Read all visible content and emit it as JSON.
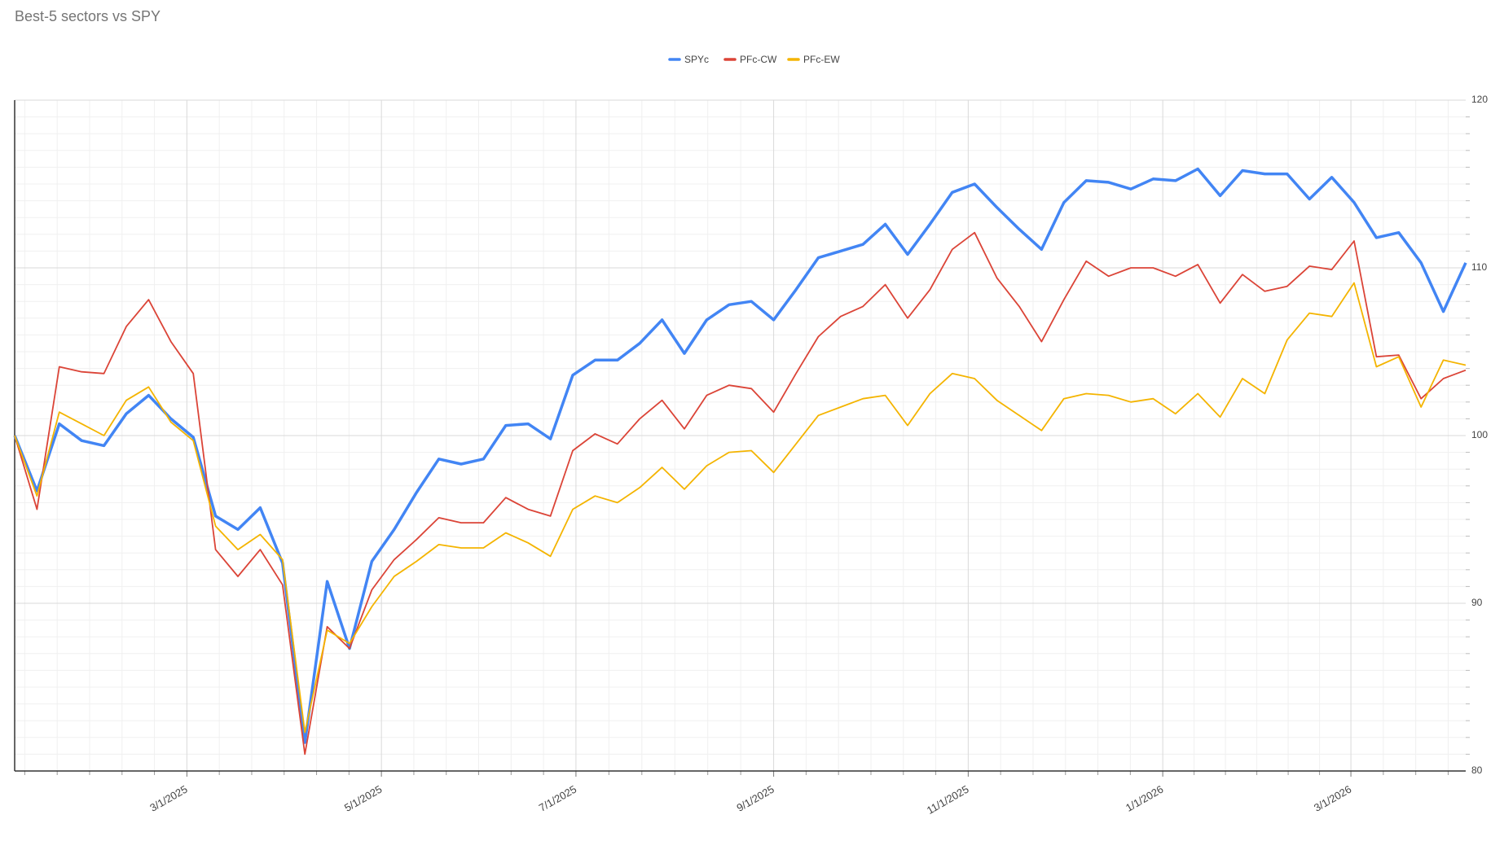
{
  "chart_data": {
    "type": "line",
    "title": "Best-5 sectors vs SPY",
    "x": [
      "2025-01-06",
      "2025-01-13",
      "2025-01-20",
      "2025-01-27",
      "2025-02-03",
      "2025-02-10",
      "2025-02-17",
      "2025-02-24",
      "2025-03-03",
      "2025-03-10",
      "2025-03-17",
      "2025-03-24",
      "2025-03-31",
      "2025-04-07",
      "2025-04-14",
      "2025-04-21",
      "2025-04-28",
      "2025-05-05",
      "2025-05-12",
      "2025-05-19",
      "2025-05-26",
      "2025-06-02",
      "2025-06-09",
      "2025-06-16",
      "2025-06-23",
      "2025-06-30",
      "2025-07-07",
      "2025-07-14",
      "2025-07-21",
      "2025-07-28",
      "2025-08-04",
      "2025-08-11",
      "2025-08-18",
      "2025-08-25",
      "2025-09-01",
      "2025-09-08",
      "2025-09-15",
      "2025-09-22",
      "2025-09-29",
      "2025-10-06",
      "2025-10-13",
      "2025-10-20",
      "2025-10-27",
      "2025-11-03",
      "2025-11-10",
      "2025-11-17",
      "2025-11-24",
      "2025-12-01",
      "2025-12-08",
      "2025-12-15",
      "2025-12-22",
      "2025-12-29",
      "2026-01-05",
      "2026-01-12",
      "2026-01-19",
      "2026-01-26",
      "2026-02-02",
      "2026-02-09",
      "2026-02-16",
      "2026-02-23",
      "2026-03-02",
      "2026-03-09",
      "2026-03-16",
      "2026-03-23",
      "2026-03-30",
      "2026-04-06"
    ],
    "series": [
      {
        "name": "SPYc",
        "color": "#4285f4",
        "values": [
          100,
          96.7,
          100.7,
          99.7,
          99.4,
          101.3,
          102.4,
          101.0,
          99.9,
          95.2,
          94.4,
          95.7,
          92.4,
          81.7,
          91.3,
          87.3,
          92.5,
          94.4,
          96.6,
          98.6,
          98.3,
          98.6,
          100.6,
          100.7,
          99.8,
          103.6,
          104.5,
          104.5,
          105.5,
          106.9,
          104.9,
          106.9,
          107.8,
          108.0,
          106.9,
          108.7,
          110.6,
          111.0,
          111.4,
          112.6,
          110.8,
          112.6,
          114.5,
          115.0,
          113.6,
          112.3,
          111.1,
          113.9,
          115.2,
          115.1,
          114.7,
          115.3,
          115.2,
          115.9,
          114.3,
          115.8,
          115.6,
          115.6,
          114.1,
          115.4,
          113.9,
          111.8,
          112.1,
          110.3,
          107.4,
          110.3
        ]
      },
      {
        "name": "PFc-CW",
        "color": "#db4437",
        "values": [
          100,
          95.6,
          104.1,
          103.8,
          103.7,
          106.5,
          108.1,
          105.6,
          103.7,
          93.2,
          91.6,
          93.2,
          91.1,
          81.0,
          88.6,
          87.3,
          90.8,
          92.6,
          93.8,
          95.1,
          94.8,
          94.8,
          96.3,
          95.6,
          95.2,
          99.1,
          100.1,
          99.5,
          101.0,
          102.1,
          100.4,
          102.4,
          103.0,
          102.8,
          101.4,
          103.7,
          105.9,
          107.1,
          107.7,
          109.0,
          107.0,
          108.7,
          111.1,
          112.1,
          109.4,
          107.7,
          105.6,
          108.1,
          110.4,
          109.5,
          110.0,
          110.0,
          109.5,
          110.2,
          107.9,
          109.6,
          108.6,
          108.9,
          110.1,
          109.9,
          111.6,
          104.7,
          104.8,
          102.2,
          103.4,
          103.9
        ]
      },
      {
        "name": "PFc-EW",
        "color": "#f4b400",
        "values": [
          100,
          96.4,
          101.4,
          100.7,
          100.0,
          102.1,
          102.9,
          100.8,
          99.7,
          94.6,
          93.2,
          94.1,
          92.6,
          82.3,
          88.4,
          87.6,
          89.8,
          91.6,
          92.5,
          93.5,
          93.3,
          93.3,
          94.2,
          93.6,
          92.8,
          95.6,
          96.4,
          96.0,
          96.9,
          98.1,
          96.8,
          98.2,
          99.0,
          99.1,
          97.8,
          99.5,
          101.2,
          101.7,
          102.2,
          102.4,
          100.6,
          102.5,
          103.7,
          103.4,
          102.1,
          101.2,
          100.3,
          102.2,
          102.5,
          102.4,
          102.0,
          102.2,
          101.3,
          102.5,
          101.1,
          103.4,
          102.5,
          105.7,
          107.3,
          107.1,
          109.1,
          104.1,
          104.7,
          101.7,
          104.5,
          104.2
        ]
      }
    ],
    "xlim": [
      "2025-01-06",
      "2026-04-06"
    ],
    "xticks": [
      {
        "value": "2025-03-01",
        "label": "3/1/2025"
      },
      {
        "value": "2025-05-01",
        "label": "5/1/2025"
      },
      {
        "value": "2025-07-01",
        "label": "7/1/2025"
      },
      {
        "value": "2025-09-01",
        "label": "9/1/2025"
      },
      {
        "value": "2025-11-01",
        "label": "11/1/2025"
      },
      {
        "value": "2026-01-01",
        "label": "1/1/2026"
      },
      {
        "value": "2026-03-01",
        "label": "3/1/2026"
      }
    ],
    "ylim": [
      80,
      120
    ],
    "yticks": [
      80,
      90,
      100,
      110,
      120
    ],
    "grid": true,
    "legend": "top"
  }
}
